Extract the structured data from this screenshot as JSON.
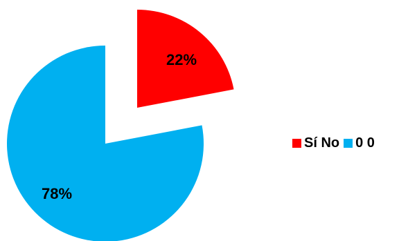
{
  "chart_data": {
    "type": "pie",
    "title": "",
    "exploded": true,
    "slices": [
      {
        "label": "Sí No",
        "value": 22,
        "display": "22%",
        "color": "#ff0000"
      },
      {
        "label": "0 0",
        "value": 78,
        "display": "78%",
        "color": "#00b0f0"
      }
    ],
    "legend": {
      "position": "right",
      "entries": [
        {
          "label": "Sí No",
          "color": "#ff0000"
        },
        {
          "label": "0 0",
          "color": "#00b0f0"
        }
      ]
    }
  }
}
